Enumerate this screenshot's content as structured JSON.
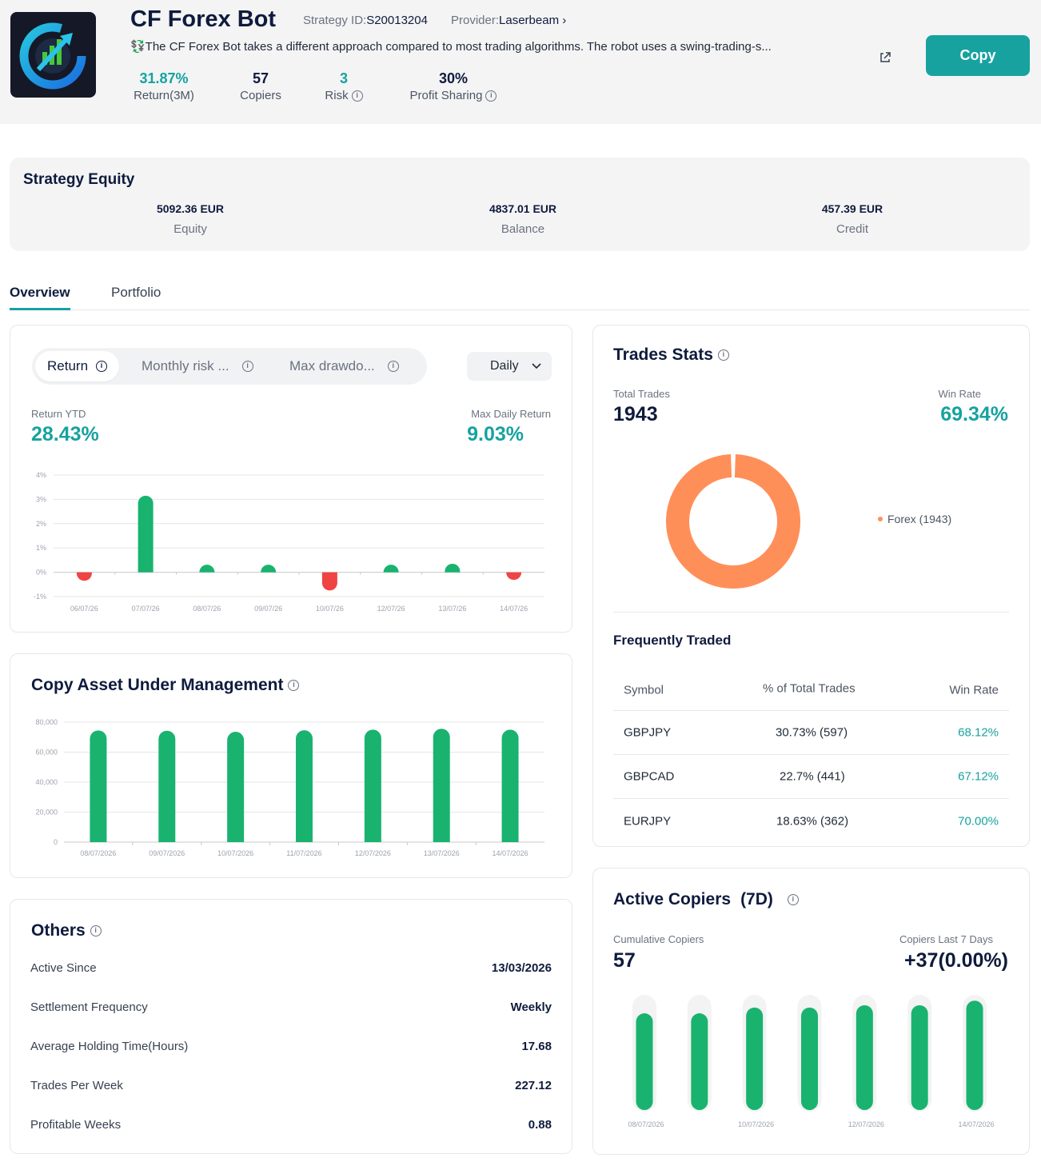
{
  "header": {
    "title": "CF Forex Bot",
    "strategy_id_label": "Strategy ID:",
    "strategy_id": "S20013204",
    "provider_label": "Provider:",
    "provider": "Laserbeam",
    "description": "💱The CF Forex Bot takes a different approach compared to most trading algorithms. The robot uses a swing-trading-s...",
    "copy_button": "Copy",
    "stats": [
      {
        "value": "31.87%",
        "label": "Return(3M)"
      },
      {
        "value": "57",
        "label": "Copiers"
      },
      {
        "value": "3",
        "label": "Risk"
      },
      {
        "value": "30%",
        "label": "Profit Sharing"
      }
    ]
  },
  "equity": {
    "title": "Strategy Equity",
    "items": [
      {
        "value": "5092.36 EUR",
        "label": "Equity"
      },
      {
        "value": "4837.01 EUR",
        "label": "Balance"
      },
      {
        "value": "457.39 EUR",
        "label": "Credit"
      }
    ]
  },
  "tabs": [
    "Overview",
    "Portfolio"
  ],
  "returns": {
    "segments": [
      "Return",
      "Monthly risk ...",
      "Max drawdo..."
    ],
    "period": "Daily",
    "ytd_label": "Return YTD",
    "ytd_value": "28.43%",
    "max_label": "Max Daily Return",
    "max_value": "9.03%"
  },
  "aum": {
    "title": "Copy Asset Under Management"
  },
  "others": {
    "title": "Others",
    "rows": [
      {
        "key": "Active Since",
        "value": "13/03/2026"
      },
      {
        "key": "Settlement Frequency",
        "value": "Weekly"
      },
      {
        "key": "Average Holding Time(Hours)",
        "value": "17.68"
      },
      {
        "key": "Trades Per Week",
        "value": "227.12"
      },
      {
        "key": "Profitable Weeks",
        "value": "0.88"
      }
    ]
  },
  "trades": {
    "title": "Trades Stats",
    "total_label": "Total Trades",
    "total_value": "1943",
    "winrate_label": "Win Rate",
    "winrate_value": "69.34%",
    "legend": "Forex (1943)",
    "freq_title": "Frequently Traded",
    "columns": [
      "Symbol",
      "% of Total Trades",
      "Win Rate"
    ],
    "rows": [
      {
        "symbol": "GBPJPY",
        "pct": "30.73% (597)",
        "win": "68.12%"
      },
      {
        "symbol": "GBPCAD",
        "pct": "22.7% (441)",
        "win": "67.12%"
      },
      {
        "symbol": "EURJPY",
        "pct": "18.63% (362)",
        "win": "70.00%"
      }
    ]
  },
  "copiers": {
    "title": "Active Copiers",
    "title_suffix": "(7D)",
    "cum_label": "Cumulative Copiers",
    "cum_value": "57",
    "last7_label": "Copiers Last 7 Days",
    "last7_value": "+37(0.00%)"
  },
  "colors": {
    "accent": "#17a2a0",
    "up": "#19b36f",
    "down": "#f04343",
    "donut": "#ff8f59"
  },
  "chart_data": [
    {
      "type": "bar",
      "id": "daily-return",
      "categories": [
        "06/07/26",
        "07/07/26",
        "08/07/26",
        "09/07/26",
        "10/07/26",
        "12/07/26",
        "13/07/26",
        "14/07/26"
      ],
      "values": [
        -0.35,
        3.15,
        0.12,
        0.2,
        -0.75,
        0.3,
        0.35,
        -0.3
      ],
      "ylim": [
        -1,
        4
      ],
      "yticks": [
        -1,
        0,
        1,
        2,
        3,
        4
      ],
      "ytick_labels": [
        "-1%",
        "0%",
        "1%",
        "2%",
        "3%",
        "4%"
      ]
    },
    {
      "type": "bar",
      "id": "aum",
      "categories": [
        "08/07/2026",
        "09/07/2026",
        "10/07/2026",
        "11/07/2026",
        "12/07/2026",
        "13/07/2026",
        "14/07/2026"
      ],
      "values": [
        74500,
        74300,
        73600,
        74600,
        75000,
        75600,
        75000
      ],
      "ylim": [
        0,
        80000
      ],
      "yticks": [
        0,
        20000,
        40000,
        60000,
        80000
      ],
      "ytick_labels": [
        "0",
        "20,000",
        "40,000",
        "60,000",
        "80,000"
      ]
    },
    {
      "type": "pie",
      "id": "trades-breakdown",
      "categories": [
        "Forex"
      ],
      "values": [
        1943
      ]
    },
    {
      "type": "bar",
      "id": "active-copiers",
      "categories": [
        "08/07/2026",
        "09/07/2026",
        "10/07/2026",
        "11/07/2026",
        "12/07/2026",
        "13/07/2026",
        "14/07/2026"
      ],
      "tick_labels": [
        "08/07/2026",
        "",
        "10/07/2026",
        "",
        "12/07/2026",
        "",
        "14/07/2026"
      ],
      "values": [
        0.84,
        0.84,
        0.89,
        0.89,
        0.91,
        0.91,
        0.95
      ],
      "ylim": [
        0,
        1
      ]
    }
  ]
}
